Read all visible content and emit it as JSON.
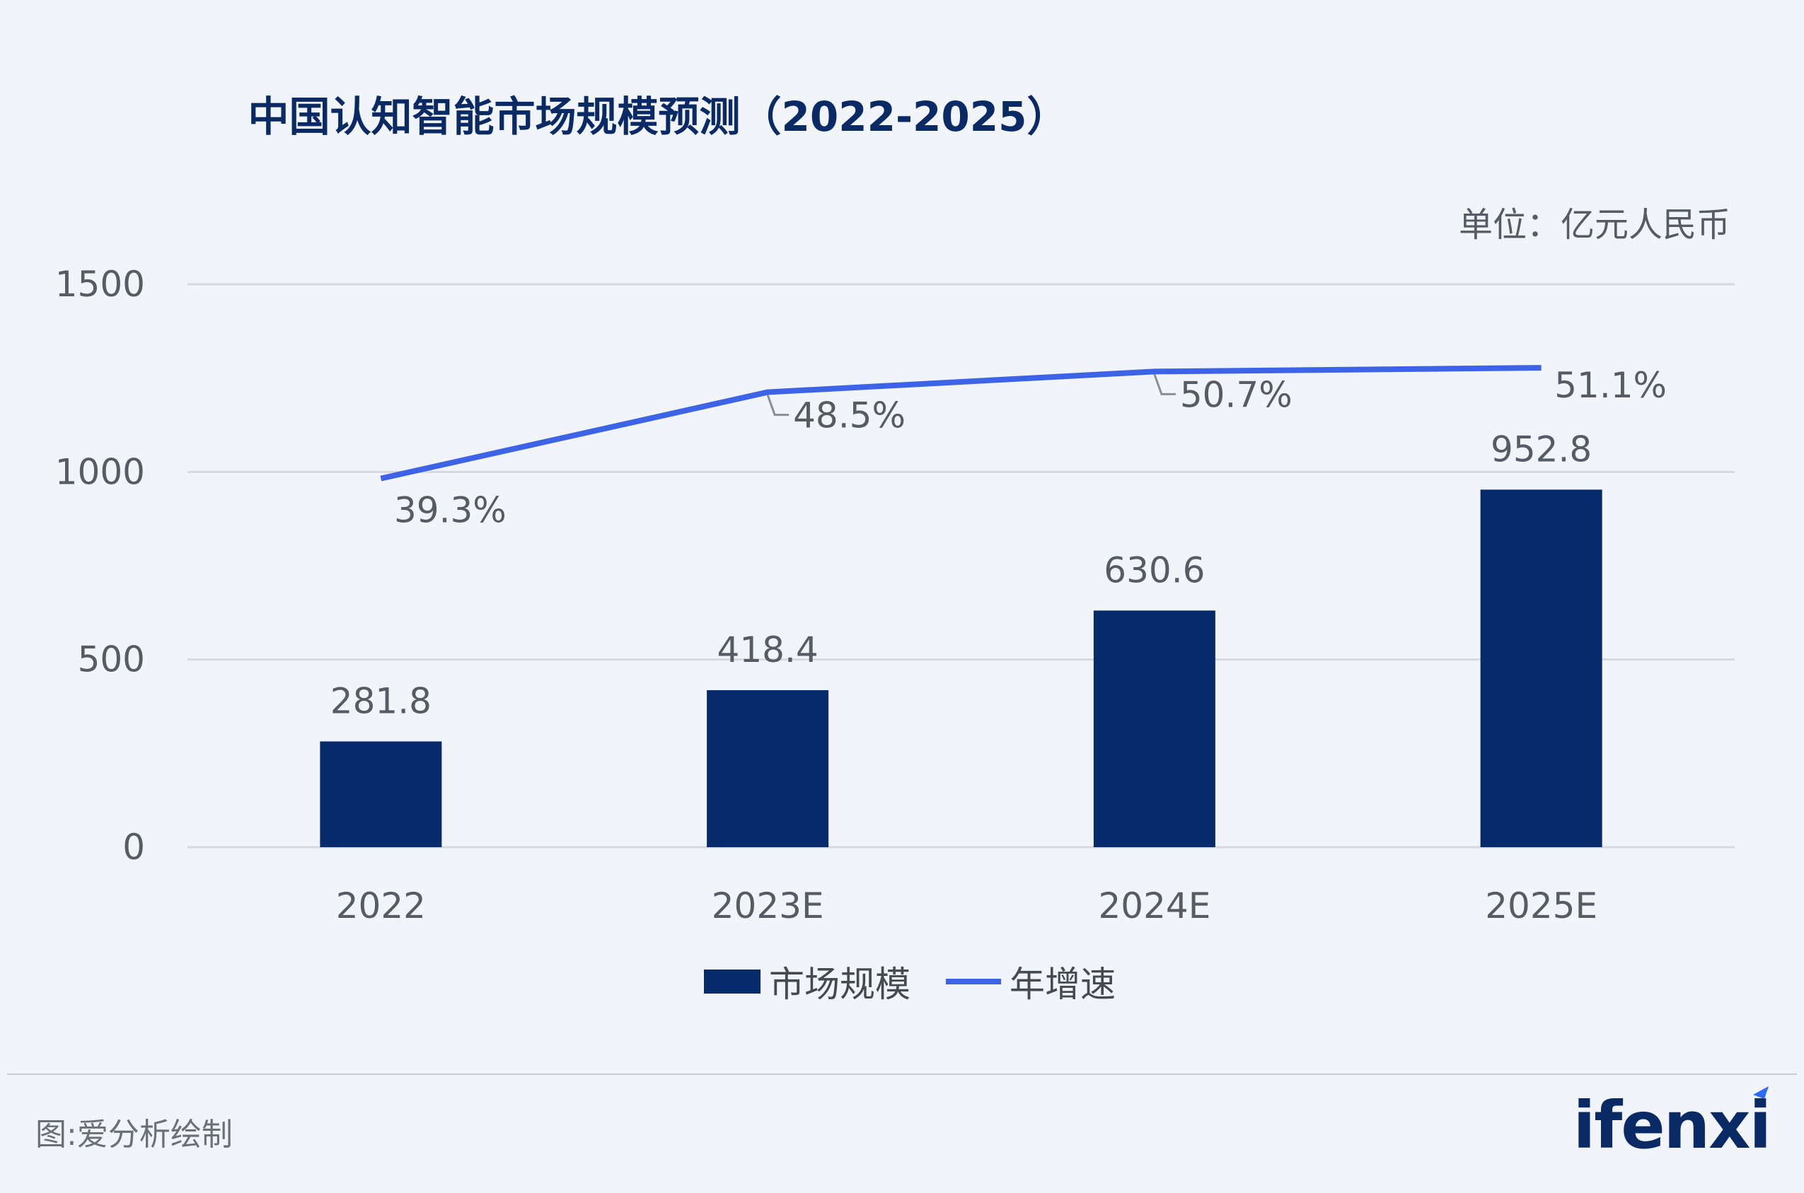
{
  "title": "中国认知智能市场规模预测（2022-2025）",
  "unit": "单位：亿元人民币",
  "legend": {
    "bar_label": "市场规模",
    "line_label": "年增速"
  },
  "source": "图:爱分析绘制",
  "logo_text": "ifenxi",
  "colors": {
    "bar": "#072a6b",
    "line": "#3d63e6",
    "grid": "#d6d9de",
    "text": "#555c66"
  },
  "chart_data": {
    "type": "bar",
    "categories": [
      "2022",
      "2023E",
      "2024E",
      "2025E"
    ],
    "series": [
      {
        "name": "市场规模",
        "type": "bar",
        "values": [
          281.8,
          418.4,
          630.6,
          952.8
        ],
        "labels": [
          "281.8",
          "418.4",
          "630.6",
          "952.8"
        ]
      },
      {
        "name": "年增速",
        "type": "line",
        "values": [
          39.3,
          48.5,
          50.7,
          51.1
        ],
        "labels": [
          "39.3%",
          "48.5%",
          "50.7%",
          "51.1%"
        ]
      }
    ],
    "yticks": [
      "0",
      "500",
      "1000",
      "1500"
    ],
    "ylim": [
      0,
      1500
    ],
    "grid": true,
    "legend_position": "bottom"
  }
}
